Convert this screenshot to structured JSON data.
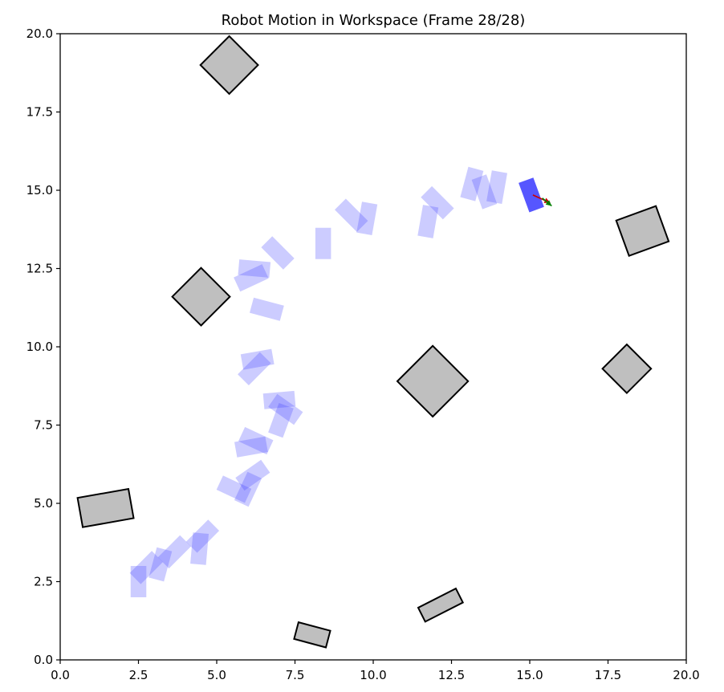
{
  "chart_data": {
    "type": "scatter",
    "title": "Robot Motion in Workspace (Frame 28/28)",
    "xlabel": "",
    "ylabel": "",
    "xlim": [
      0,
      20
    ],
    "ylim": [
      0,
      20
    ],
    "grid": false,
    "x_ticks": [
      "0.0",
      "2.5",
      "5.0",
      "7.5",
      "10.0",
      "12.5",
      "15.0",
      "17.5",
      "20.0"
    ],
    "y_ticks": [
      "0.0",
      "2.5",
      "5.0",
      "7.5",
      "10.0",
      "12.5",
      "15.0",
      "17.5",
      "20.0"
    ],
    "tick_values": [
      0,
      2.5,
      5,
      7.5,
      10,
      12.5,
      15,
      17.5,
      20
    ],
    "colors": {
      "obstacle_fill": "#bfbfbf",
      "obstacle_edge": "#000000",
      "robot": "#4444ff",
      "trail": "#ccccff",
      "heading_arrow": "#cc0000",
      "lateral_arrow": "#008000"
    },
    "obstacles": [
      {
        "cx": 5.4,
        "cy": 19.0,
        "w": 1.3,
        "h": 1.3,
        "angle": 45
      },
      {
        "cx": 4.5,
        "cy": 11.6,
        "w": 1.3,
        "h": 1.3,
        "angle": 45
      },
      {
        "cx": 11.9,
        "cy": 8.9,
        "w": 1.6,
        "h": 1.6,
        "angle": 45
      },
      {
        "cx": 18.1,
        "cy": 9.3,
        "w": 1.1,
        "h": 1.1,
        "angle": 45
      },
      {
        "cx": 18.6,
        "cy": 13.7,
        "w": 1.35,
        "h": 1.2,
        "angle": 20
      },
      {
        "cx": 1.45,
        "cy": 4.85,
        "w": 1.65,
        "h": 0.95,
        "angle": 10
      },
      {
        "cx": 12.15,
        "cy": 1.75,
        "w": 1.35,
        "h": 0.5,
        "angle": 27
      },
      {
        "cx": 8.05,
        "cy": 0.8,
        "w": 1.05,
        "h": 0.55,
        "angle": -15
      }
    ],
    "trail": [
      {
        "x": 2.5,
        "y": 2.5,
        "theta": 90
      },
      {
        "x": 2.75,
        "y": 2.95,
        "theta": 45
      },
      {
        "x": 3.2,
        "y": 3.05,
        "theta": 75
      },
      {
        "x": 3.65,
        "y": 3.45,
        "theta": 45
      },
      {
        "x": 4.45,
        "y": 3.55,
        "theta": 85
      },
      {
        "x": 4.55,
        "y": 3.95,
        "theta": 45
      },
      {
        "x": 5.55,
        "y": 5.45,
        "theta": -25
      },
      {
        "x": 6.0,
        "y": 5.45,
        "theta": 65
      },
      {
        "x": 6.15,
        "y": 5.9,
        "theta": 35
      },
      {
        "x": 6.1,
        "y": 6.8,
        "theta": 10
      },
      {
        "x": 6.25,
        "y": 7.0,
        "theta": -25
      },
      {
        "x": 7.05,
        "y": 7.65,
        "theta": 70
      },
      {
        "x": 7.2,
        "y": 8.0,
        "theta": -35
      },
      {
        "x": 7.0,
        "y": 8.3,
        "theta": 5
      },
      {
        "x": 6.2,
        "y": 9.3,
        "theta": 45
      },
      {
        "x": 6.3,
        "y": 9.6,
        "theta": 10
      },
      {
        "x": 6.6,
        "y": 11.2,
        "theta": -15
      },
      {
        "x": 6.1,
        "y": 12.2,
        "theta": 25
      },
      {
        "x": 6.2,
        "y": 12.5,
        "theta": -5
      },
      {
        "x": 6.95,
        "y": 13.0,
        "theta": -45
      },
      {
        "x": 8.4,
        "y": 13.3,
        "theta": 90
      },
      {
        "x": 9.3,
        "y": 14.2,
        "theta": -45
      },
      {
        "x": 9.8,
        "y": 14.1,
        "theta": 80
      },
      {
        "x": 11.75,
        "y": 14.0,
        "theta": 80
      },
      {
        "x": 12.05,
        "y": 14.6,
        "theta": -45
      },
      {
        "x": 13.15,
        "y": 15.2,
        "theta": 75
      },
      {
        "x": 13.55,
        "y": 14.95,
        "theta": 110
      },
      {
        "x": 13.95,
        "y": 15.1,
        "theta": 80
      }
    ],
    "robot": {
      "x": 15.05,
      "y": 14.85,
      "theta": 110
    },
    "heading_arrow": {
      "x": 15.1,
      "y": 14.85,
      "dx": 0.55,
      "dy": -0.25
    },
    "lateral_arrow": {
      "x": 15.4,
      "y": 14.75,
      "dx": 0.3,
      "dy": -0.25
    }
  }
}
